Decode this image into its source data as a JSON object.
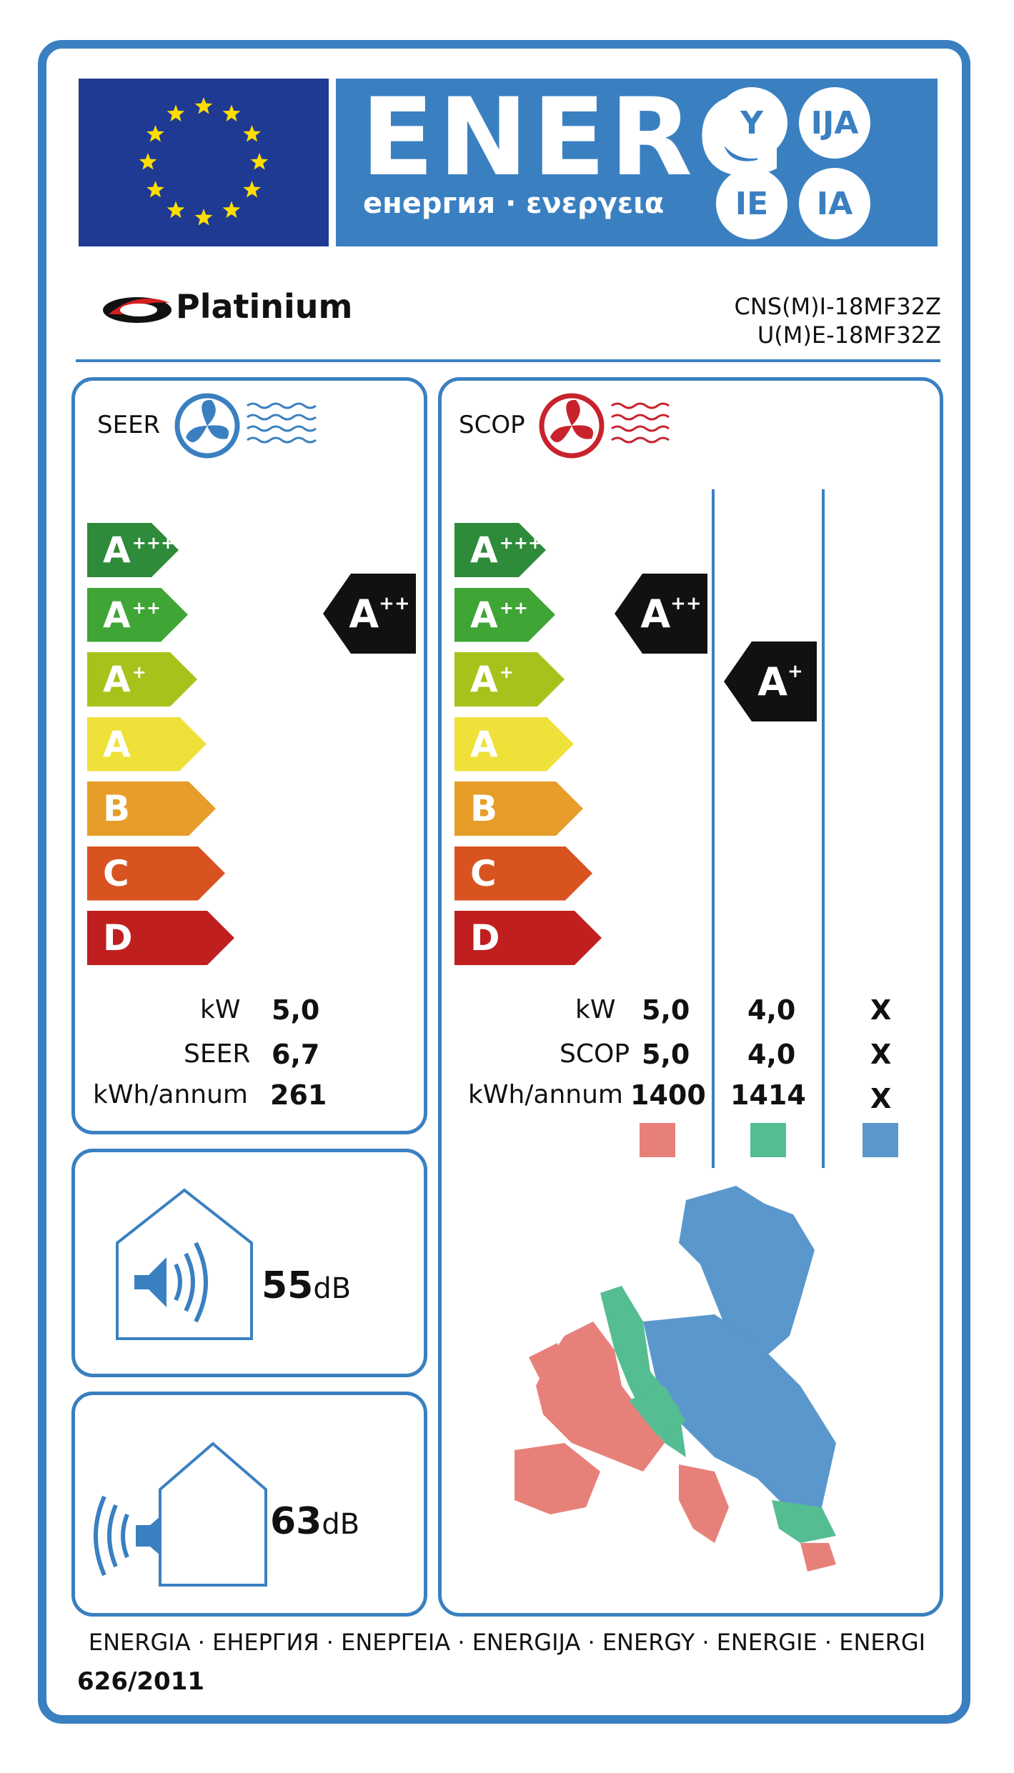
{
  "banner": {
    "title": "ENERG",
    "subtitle": "енергия · ενεργεια",
    "suffixes": [
      "Y",
      "IJA",
      "IE",
      "IA"
    ]
  },
  "brand": {
    "name": "Platinium"
  },
  "models": {
    "indoor": "CNS(M)I-18MF32Z",
    "outdoor": "U(M)E-18MF32Z"
  },
  "classes": [
    {
      "letter": "A",
      "plus": "+++",
      "color": "#2e8b3a"
    },
    {
      "letter": "A",
      "plus": "++",
      "color": "#3fa535"
    },
    {
      "letter": "A",
      "plus": "+",
      "color": "#a6c31b"
    },
    {
      "letter": "A",
      "plus": "",
      "color": "#f0e13a"
    },
    {
      "letter": "B",
      "plus": "",
      "color": "#e69d2a"
    },
    {
      "letter": "C",
      "plus": "",
      "color": "#d8531f"
    },
    {
      "letter": "D",
      "plus": "",
      "color": "#c01f1f"
    }
  ],
  "seer": {
    "heading": "SEER",
    "rating_letter": "A",
    "rating_plus": "++",
    "labels": [
      "kW",
      "SEER",
      "kWh/annum"
    ],
    "values": [
      "5,0",
      "6,7",
      "261"
    ]
  },
  "scop": {
    "heading": "SCOP",
    "ratings": [
      {
        "letter": "A",
        "plus": "++"
      },
      {
        "letter": "A",
        "plus": "+"
      }
    ],
    "labels": [
      "kW",
      "SCOP",
      "kWh/annum"
    ],
    "col1": [
      "5,0",
      "5,0",
      "1400"
    ],
    "col2": [
      "4,0",
      "4,0",
      "1414"
    ],
    "col3": [
      "X",
      "X",
      "X"
    ],
    "zone_colors": [
      "#e8807a",
      "#55bd92",
      "#5a97cc"
    ]
  },
  "noise": {
    "indoor": {
      "value": "55",
      "unit": "dB"
    },
    "outdoor": {
      "value": "63",
      "unit": "dB"
    }
  },
  "footer": {
    "languages": "ENERGIA · ЕНЕРГИЯ · ΕΝΕΡΓΕΙΑ · ENERGIJA · ENERGY · ENERGIE · ENERGI",
    "regulation": "626/2011"
  },
  "colors": {
    "frame": "#3a80c1",
    "flag": "#1f3a93",
    "star": "#ffdd00",
    "fan_cool": "#3a80c1",
    "fan_heat": "#c8232c"
  }
}
